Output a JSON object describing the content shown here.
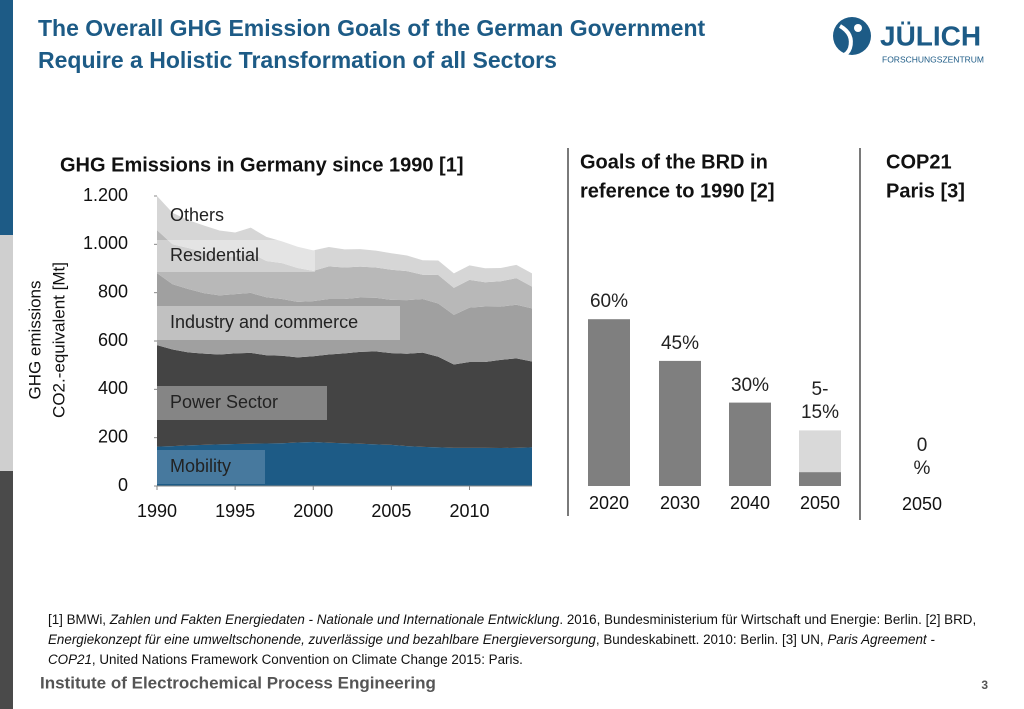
{
  "header": {
    "title_lines": [
      "The Overall GHG Emission Goals of the German Government",
      "Require a Holistic Transformation of all Sectors"
    ],
    "logo": "JÜLICH",
    "logo_sub": "FORSCHUNGSZENTRUM"
  },
  "chart_data": [
    {
      "type": "area",
      "title": "GHG Emissions in Germany since 1990 [1]",
      "stacked": true,
      "ylabel": [
        "GHG emissions",
        "CO2.-equivalent  [Mt]"
      ],
      "x": [
        1990,
        1991,
        1992,
        1993,
        1994,
        1995,
        1996,
        1997,
        1998,
        1999,
        2000,
        2001,
        2002,
        2003,
        2004,
        2005,
        2006,
        2007,
        2008,
        2009,
        2010,
        2011,
        2012,
        2013,
        2014
      ],
      "series": [
        {
          "name": "Mobility",
          "color": "#1d5b86",
          "values": [
            163,
            165,
            168,
            170,
            172,
            174,
            175,
            176,
            177,
            180,
            182,
            179,
            177,
            175,
            172,
            170,
            165,
            162,
            160,
            158,
            158,
            158,
            157,
            158,
            160
          ]
        },
        {
          "name": "Power Sector",
          "color": "#444444",
          "values": [
            420,
            400,
            385,
            378,
            372,
            375,
            376,
            365,
            362,
            352,
            355,
            365,
            372,
            380,
            385,
            380,
            382,
            390,
            375,
            345,
            355,
            355,
            365,
            370,
            355
          ]
        },
        {
          "name": "Industry and commerce",
          "color": "#a0a0a0",
          "values": [
            298,
            270,
            262,
            250,
            245,
            245,
            248,
            240,
            235,
            230,
            228,
            230,
            225,
            225,
            222,
            220,
            222,
            222,
            220,
            205,
            225,
            230,
            220,
            222,
            220
          ]
        },
        {
          "name": "Residential",
          "color": "#b8b8b8",
          "values": [
            178,
            165,
            170,
            170,
            160,
            155,
            165,
            150,
            148,
            140,
            125,
            135,
            130,
            128,
            125,
            125,
            120,
            100,
            118,
            112,
            115,
            100,
            105,
            110,
            90
          ]
        },
        {
          "name": "Others",
          "color": "#d6d6d6",
          "values": [
            141,
            130,
            115,
            110,
            108,
            100,
            105,
            100,
            90,
            88,
            85,
            80,
            75,
            72,
            70,
            68,
            65,
            60,
            60,
            60,
            60,
            58,
            55,
            55,
            55
          ]
        }
      ],
      "xlim": [
        1990,
        2014
      ],
      "xticks": [
        1990,
        1995,
        2000,
        2005,
        2010
      ],
      "ylim": [
        0,
        1200
      ],
      "yticks": [
        0,
        200,
        400,
        600,
        800,
        {
          "value": 1000,
          "label": "1.000"
        },
        {
          "value": 1200,
          "label": "1.200"
        }
      ]
    },
    {
      "type": "bar",
      "stacked": true,
      "title_lines": [
        "Goals of the BRD in",
        "reference to 1990 [2]"
      ],
      "categories": [
        "2020",
        "2030",
        "2040",
        "2050"
      ],
      "series": [
        {
          "color": "#7f7f7f",
          "values": [
            60,
            45,
            30,
            5
          ],
          "value_labels": [
            "60%",
            "45%",
            "30%",
            null
          ]
        },
        {
          "color": "#d9d9d9",
          "values": [
            null,
            null,
            null,
            15
          ],
          "value_labels": [
            null,
            null,
            null,
            "5-15%"
          ]
        }
      ],
      "ylim": [
        0,
        100
      ]
    },
    {
      "type": "bar",
      "stacked": true,
      "title_lines": [
        "COP21",
        "Paris [3]"
      ],
      "categories": [
        "2050"
      ],
      "series": [
        {
          "color": "#7f7f7f",
          "values": [
            0
          ],
          "value_labels": [
            "0 %"
          ]
        }
      ],
      "ylim": [
        0,
        100
      ]
    }
  ],
  "references": [
    {
      "lead": "[1] BMWi, ",
      "italic": "Zahlen und Fakten Energiedaten - Nationale und Internationale Entwicklung",
      "rest": ". 2016, Bundesministerium für Wirtschaft und Energie: Berlin.  "
    },
    {
      "lead": "[2] BRD, ",
      "italic": "Energiekonzept für eine umweltschonende, zuverlässige und bezahlbare Energieversorgung",
      "rest": ", Bundeskabinett. 2010: Berlin.  "
    },
    {
      "lead": "[3] UN, ",
      "italic": "Paris Agreement - COP21",
      "rest": ", United Nations Framework Convention on Climate Change 2015: Paris."
    }
  ],
  "footer": {
    "institute": "Institute of Electrochemical Process Engineering",
    "page": "3"
  }
}
